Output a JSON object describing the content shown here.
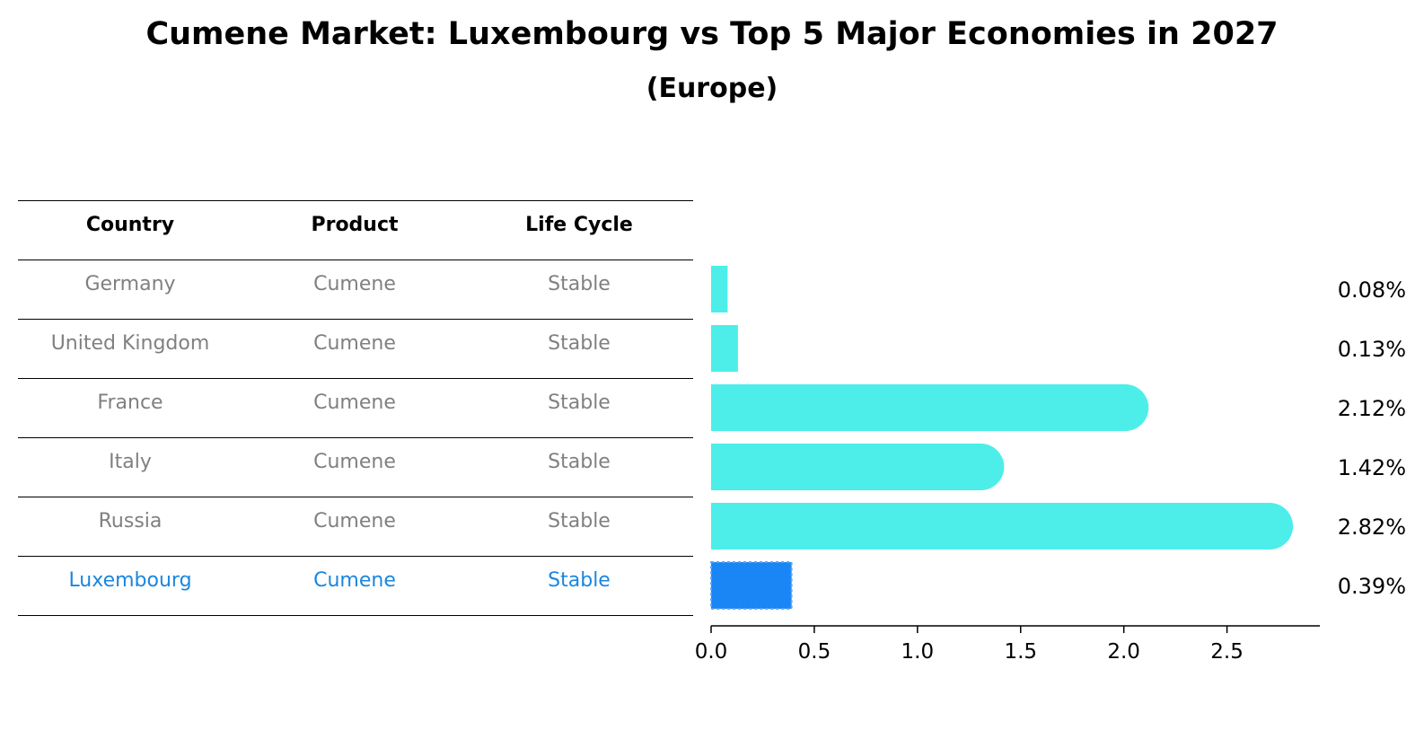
{
  "title": "Cumene Market: Luxembourg vs Top 5 Major Economies in 2027",
  "subtitle": "(Europe)",
  "table": {
    "headers": [
      "Country",
      "Product",
      "Life Cycle"
    ],
    "rows": [
      {
        "country": "Germany",
        "product": "Cumene",
        "life_cycle": "Stable"
      },
      {
        "country": "United Kingdom",
        "product": "Cumene",
        "life_cycle": "Stable"
      },
      {
        "country": "France",
        "product": "Cumene",
        "life_cycle": "Stable"
      },
      {
        "country": "Italy",
        "product": "Cumene",
        "life_cycle": "Stable"
      },
      {
        "country": "Russia",
        "product": "Cumene",
        "life_cycle": "Stable"
      },
      {
        "country": "Luxembourg",
        "product": "Cumene",
        "life_cycle": "Stable"
      }
    ]
  },
  "colors": {
    "bar": "#4deeea",
    "highlight_bar": "#1a86f5",
    "highlight_text": "#1a86e0",
    "row_text": "#808080"
  },
  "chart_data": {
    "type": "bar",
    "orientation": "horizontal",
    "categories": [
      "Germany",
      "United Kingdom",
      "France",
      "Italy",
      "Russia",
      "Luxembourg"
    ],
    "values": [
      0.08,
      0.13,
      2.12,
      1.42,
      2.82,
      0.39
    ],
    "value_labels": [
      "0.08%",
      "0.13%",
      "2.12%",
      "1.42%",
      "2.82%",
      "0.39%"
    ],
    "highlight": "Luxembourg",
    "xlim": [
      0,
      2.95
    ],
    "xticks": [
      0.0,
      0.5,
      1.0,
      1.5,
      2.0,
      2.5
    ],
    "xtick_labels": [
      "0.0",
      "0.5",
      "1.0",
      "1.5",
      "2.0",
      "2.5"
    ],
    "xlabel": "",
    "ylabel": "",
    "grid": false
  }
}
